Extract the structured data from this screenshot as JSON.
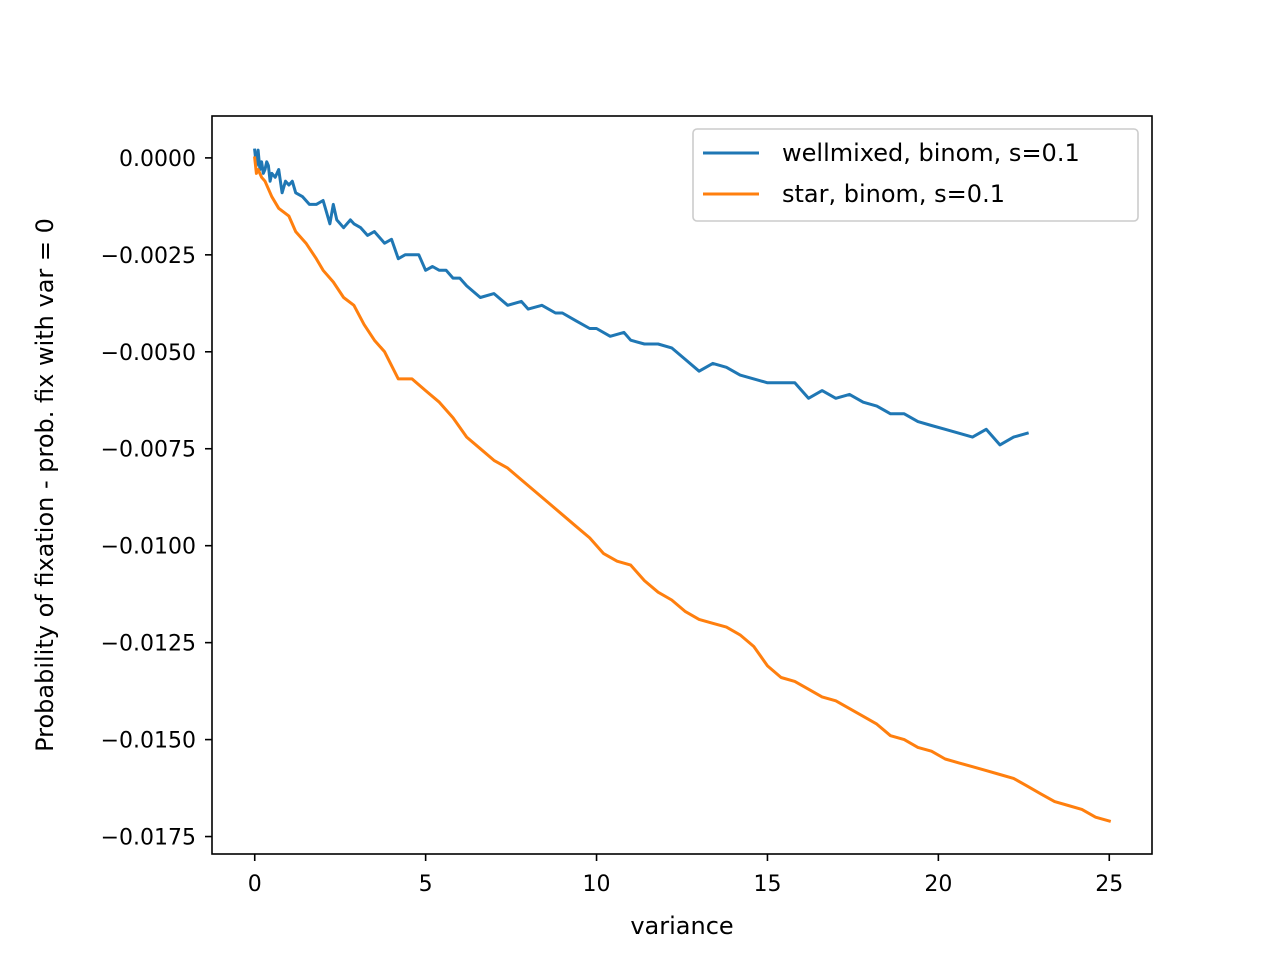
{
  "chart_data": {
    "type": "line",
    "xlabel": "variance",
    "ylabel": "Probability of fixation - prob. fix with var = 0",
    "xlim": [
      -1.25,
      26.25
    ],
    "ylim": [
      -0.01795,
      0.00108
    ],
    "xticks": [
      0,
      5,
      10,
      15,
      20,
      25
    ],
    "xtick_labels": [
      "0",
      "5",
      "10",
      "15",
      "20",
      "25"
    ],
    "yticks": [
      0.0,
      -0.0025,
      -0.005,
      -0.0075,
      -0.01,
      -0.0125,
      -0.015,
      -0.0175
    ],
    "ytick_labels": [
      "0.0000",
      "−0.0025",
      "−0.0050",
      "−0.0075",
      "−0.0100",
      "−0.0125",
      "−0.0150",
      "−0.0175"
    ],
    "grid": false,
    "legend_position": "upper right",
    "series": [
      {
        "name": "wellmixed, binom, s=0.1",
        "color": "#1f77b4",
        "x": [
          0,
          0.05,
          0.1,
          0.15,
          0.2,
          0.25,
          0.3,
          0.35,
          0.4,
          0.45,
          0.5,
          0.6,
          0.7,
          0.8,
          0.9,
          1.0,
          1.1,
          1.2,
          1.4,
          1.6,
          1.8,
          2.0,
          2.2,
          2.3,
          2.4,
          2.6,
          2.8,
          2.9,
          3.1,
          3.3,
          3.5,
          3.8,
          4.0,
          4.2,
          4.4,
          4.6,
          4.8,
          5.0,
          5.2,
          5.4,
          5.6,
          5.8,
          6.0,
          6.2,
          6.6,
          7.0,
          7.4,
          7.8,
          8.0,
          8.4,
          8.8,
          9.0,
          9.4,
          9.8,
          10.0,
          10.4,
          10.8,
          11.0,
          11.4,
          11.8,
          12.2,
          12.6,
          13.0,
          13.4,
          13.8,
          14.2,
          14.6,
          15.0,
          15.4,
          15.8,
          16.2,
          16.6,
          17.0,
          17.4,
          17.8,
          18.2,
          18.6,
          19.0,
          19.4,
          19.8,
          20.2,
          20.6,
          21.0,
          21.4,
          21.8,
          22.2,
          22.6
        ],
        "y": [
          0.0002,
          -0.0002,
          0.0002,
          -0.0003,
          -0.0001,
          -0.0004,
          -0.0003,
          -0.0001,
          -0.0002,
          -0.0006,
          -0.0004,
          -0.0005,
          -0.0003,
          -0.0009,
          -0.0006,
          -0.0007,
          -0.0006,
          -0.0009,
          -0.001,
          -0.0012,
          -0.0012,
          -0.0011,
          -0.0017,
          -0.0012,
          -0.0016,
          -0.0018,
          -0.0016,
          -0.0017,
          -0.0018,
          -0.002,
          -0.0019,
          -0.0022,
          -0.0021,
          -0.0026,
          -0.0025,
          -0.0025,
          -0.0025,
          -0.0029,
          -0.0028,
          -0.0029,
          -0.0029,
          -0.0031,
          -0.0031,
          -0.0033,
          -0.0036,
          -0.0035,
          -0.0038,
          -0.0037,
          -0.0039,
          -0.0038,
          -0.004,
          -0.004,
          -0.0042,
          -0.0044,
          -0.0044,
          -0.0046,
          -0.0045,
          -0.0047,
          -0.0048,
          -0.0048,
          -0.0049,
          -0.0052,
          -0.0055,
          -0.0053,
          -0.0054,
          -0.0056,
          -0.0057,
          -0.0058,
          -0.0058,
          -0.0058,
          -0.0062,
          -0.006,
          -0.0062,
          -0.0061,
          -0.0063,
          -0.0064,
          -0.0066,
          -0.0066,
          -0.0068,
          -0.0069,
          -0.007,
          -0.0071,
          -0.0072,
          -0.007,
          -0.0074,
          -0.0072,
          -0.0071
        ]
      },
      {
        "name": "star, binom, s=0.1",
        "color": "#ff7f0e",
        "x": [
          0,
          0.05,
          0.1,
          0.2,
          0.3,
          0.5,
          0.7,
          1.0,
          1.2,
          1.5,
          1.8,
          2.0,
          2.3,
          2.6,
          2.9,
          3.2,
          3.5,
          3.8,
          4.2,
          4.6,
          5.0,
          5.4,
          5.8,
          6.2,
          6.6,
          7.0,
          7.4,
          7.8,
          8.2,
          8.6,
          9.0,
          9.4,
          9.8,
          10.2,
          10.6,
          11.0,
          11.4,
          11.8,
          12.2,
          12.6,
          13.0,
          13.4,
          13.8,
          14.2,
          14.6,
          15.0,
          15.4,
          15.8,
          16.2,
          16.6,
          17.0,
          17.4,
          17.8,
          18.2,
          18.6,
          19.0,
          19.4,
          19.8,
          20.2,
          20.6,
          21.0,
          21.4,
          21.8,
          22.2,
          22.6,
          23.0,
          23.4,
          23.8,
          24.2,
          24.6,
          25.0
        ],
        "y": [
          0.0,
          -0.0004,
          -0.0003,
          -0.0005,
          -0.0006,
          -0.001,
          -0.0013,
          -0.0015,
          -0.0019,
          -0.0022,
          -0.0026,
          -0.0029,
          -0.0032,
          -0.0036,
          -0.0038,
          -0.0043,
          -0.0047,
          -0.005,
          -0.0057,
          -0.0057,
          -0.006,
          -0.0063,
          -0.0067,
          -0.0072,
          -0.0075,
          -0.0078,
          -0.008,
          -0.0083,
          -0.0086,
          -0.0089,
          -0.0092,
          -0.0095,
          -0.0098,
          -0.0102,
          -0.0104,
          -0.0105,
          -0.0109,
          -0.0112,
          -0.0114,
          -0.0117,
          -0.0119,
          -0.012,
          -0.0121,
          -0.0123,
          -0.0126,
          -0.0131,
          -0.0134,
          -0.0135,
          -0.0137,
          -0.0139,
          -0.014,
          -0.0142,
          -0.0144,
          -0.0146,
          -0.0149,
          -0.015,
          -0.0152,
          -0.0153,
          -0.0155,
          -0.0156,
          -0.0157,
          -0.0158,
          -0.0159,
          -0.016,
          -0.0162,
          -0.0164,
          -0.0166,
          -0.0167,
          -0.0168,
          -0.017,
          -0.0171
        ]
      }
    ]
  }
}
